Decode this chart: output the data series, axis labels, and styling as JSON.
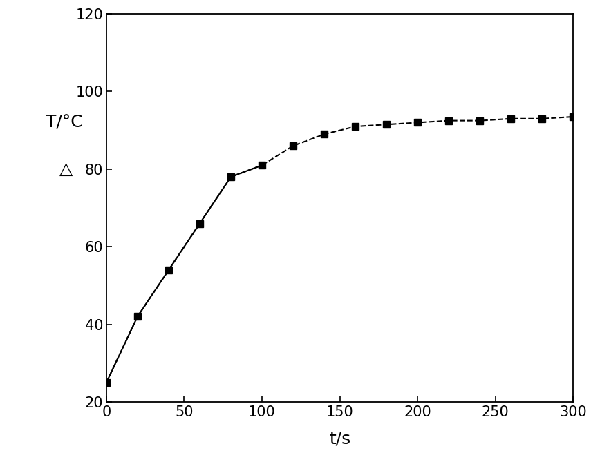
{
  "x": [
    0,
    20,
    40,
    60,
    80,
    100,
    120,
    140,
    160,
    180,
    200,
    220,
    240,
    260,
    280,
    300
  ],
  "y": [
    25,
    42,
    54,
    66,
    78,
    81,
    86,
    89,
    91,
    91.5,
    92,
    92.5,
    92.5,
    93,
    93,
    93.5
  ],
  "xlabel": "t/s",
  "ylabel_line1": "T/°C",
  "ylabel_line2": "△",
  "xlim": [
    0,
    300
  ],
  "ylim": [
    20,
    120
  ],
  "xticks": [
    0,
    50,
    100,
    150,
    200,
    250,
    300
  ],
  "yticks": [
    20,
    40,
    60,
    80,
    100,
    120
  ],
  "marker": "s",
  "marker_color": "#000000",
  "line_color": "#000000",
  "line_style_solid": "-",
  "line_style_dash": "--",
  "marker_size": 7,
  "line_width": 1.5,
  "bg_color": "#ffffff",
  "xlabel_fontsize": 18,
  "ylabel_fontsize": 18,
  "tick_fontsize": 15,
  "solid_end_idx": 5
}
